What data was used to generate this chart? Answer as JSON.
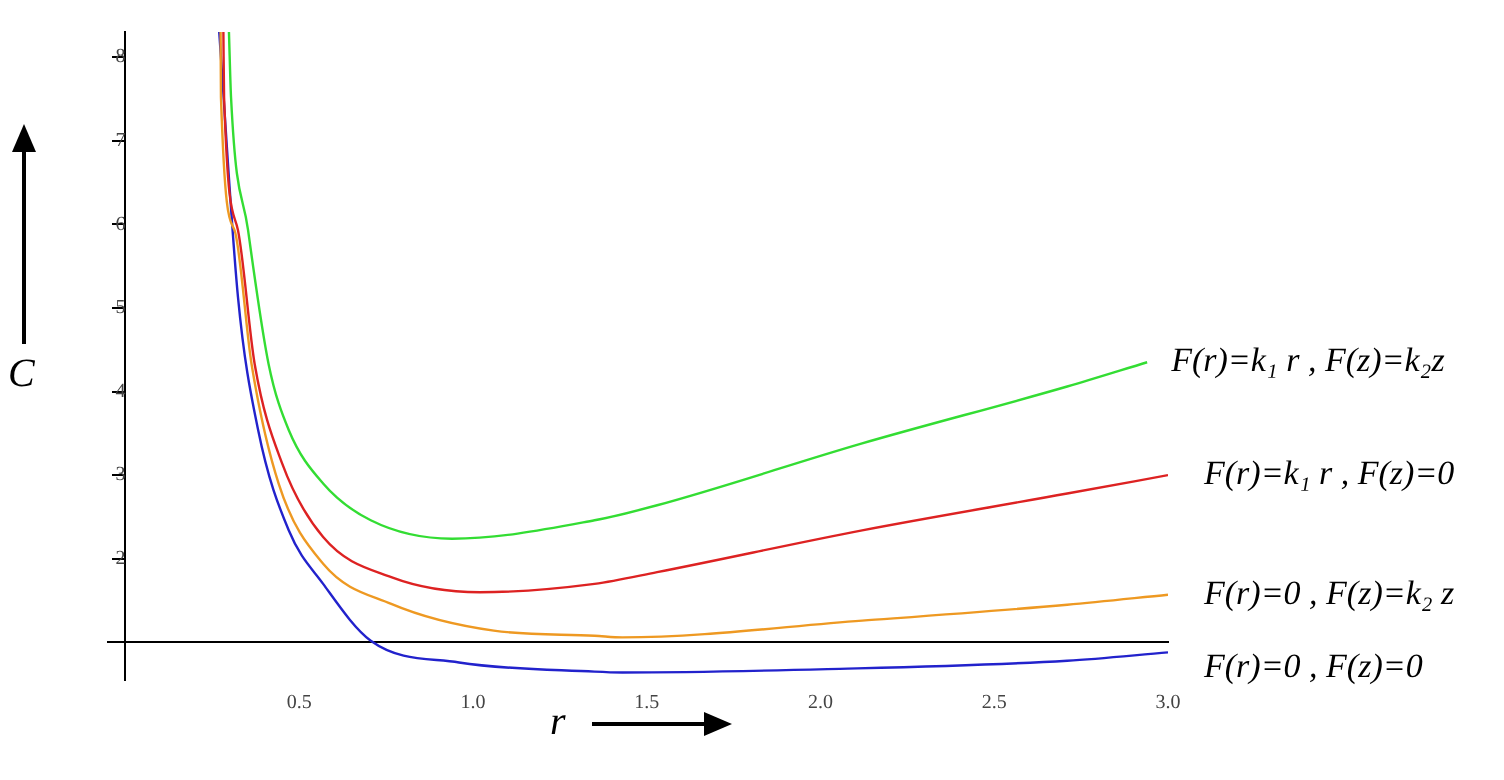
{
  "chart_data": {
    "type": "line",
    "xlabel": "r",
    "ylabel": "C",
    "xlim": [
      -0.05,
      3.0
    ],
    "ylim": [
      0.55,
      8.3
    ],
    "xticks": [
      {
        "value": 0.5,
        "label": "0.5"
      },
      {
        "value": 1,
        "label": "1.0"
      },
      {
        "value": 1.5,
        "label": "1.5"
      },
      {
        "value": 2,
        "label": "2.0"
      },
      {
        "value": 2.5,
        "label": "2.5"
      },
      {
        "value": 3,
        "label": "3.0"
      }
    ],
    "yticks": [
      2,
      3,
      4,
      5,
      6,
      7,
      8
    ],
    "grid": false,
    "legend": false,
    "marker": "none",
    "line_style": "solid",
    "series": [
      {
        "name": "F(r)=k₁ r , F(z)=k₂z",
        "color": "#33dd33",
        "x": [
          0.298,
          0.304,
          0.353,
          0.412,
          0.47,
          0.569,
          0.706,
          0.94,
          1.35,
          1.53,
          2.12,
          2.71,
          2.94
        ],
        "values": [
          8.3,
          7.52,
          5.93,
          4.33,
          3.54,
          2.9,
          2.46,
          2.24,
          2.46,
          2.64,
          3.38,
          4.06,
          4.35
        ]
      },
      {
        "name": "F(r)=k₁ r , F(z)=0",
        "color": "#dd2222",
        "x": [
          0.282,
          0.284,
          0.324,
          0.372,
          0.451,
          0.569,
          0.765,
          1.02,
          1.35,
          1.53,
          2.12,
          2.71,
          3.0
        ],
        "values": [
          8.3,
          7.52,
          5.93,
          4.33,
          3.14,
          2.26,
          1.78,
          1.6,
          1.7,
          1.84,
          2.34,
          2.78,
          3.0
        ]
      },
      {
        "name": "F(r)=0 , F(z)=k₂ z",
        "color": "#ee9922",
        "x": [
          0.274,
          0.275,
          0.314,
          0.363,
          0.441,
          0.569,
          0.765,
          1.06,
          1.35,
          1.43,
          2.12,
          2.71,
          3.0
        ],
        "values": [
          8.3,
          7.52,
          5.93,
          4.33,
          2.9,
          1.94,
          1.46,
          1.14,
          1.08,
          1.06,
          1.26,
          1.45,
          1.57
        ]
      },
      {
        "name": "F(r)=0 , F(z)=0",
        "color": "#2222cc",
        "x": [
          0.27,
          0.324,
          0.382,
          0.47,
          0.569,
          0.706,
          0.96,
          1.35,
          1.43,
          2.02,
          2.71,
          3.0
        ],
        "values": [
          8.3,
          5.13,
          3.54,
          2.34,
          1.7,
          1.02,
          0.76,
          0.65,
          0.64,
          0.68,
          0.78,
          0.88
        ]
      }
    ]
  }
}
